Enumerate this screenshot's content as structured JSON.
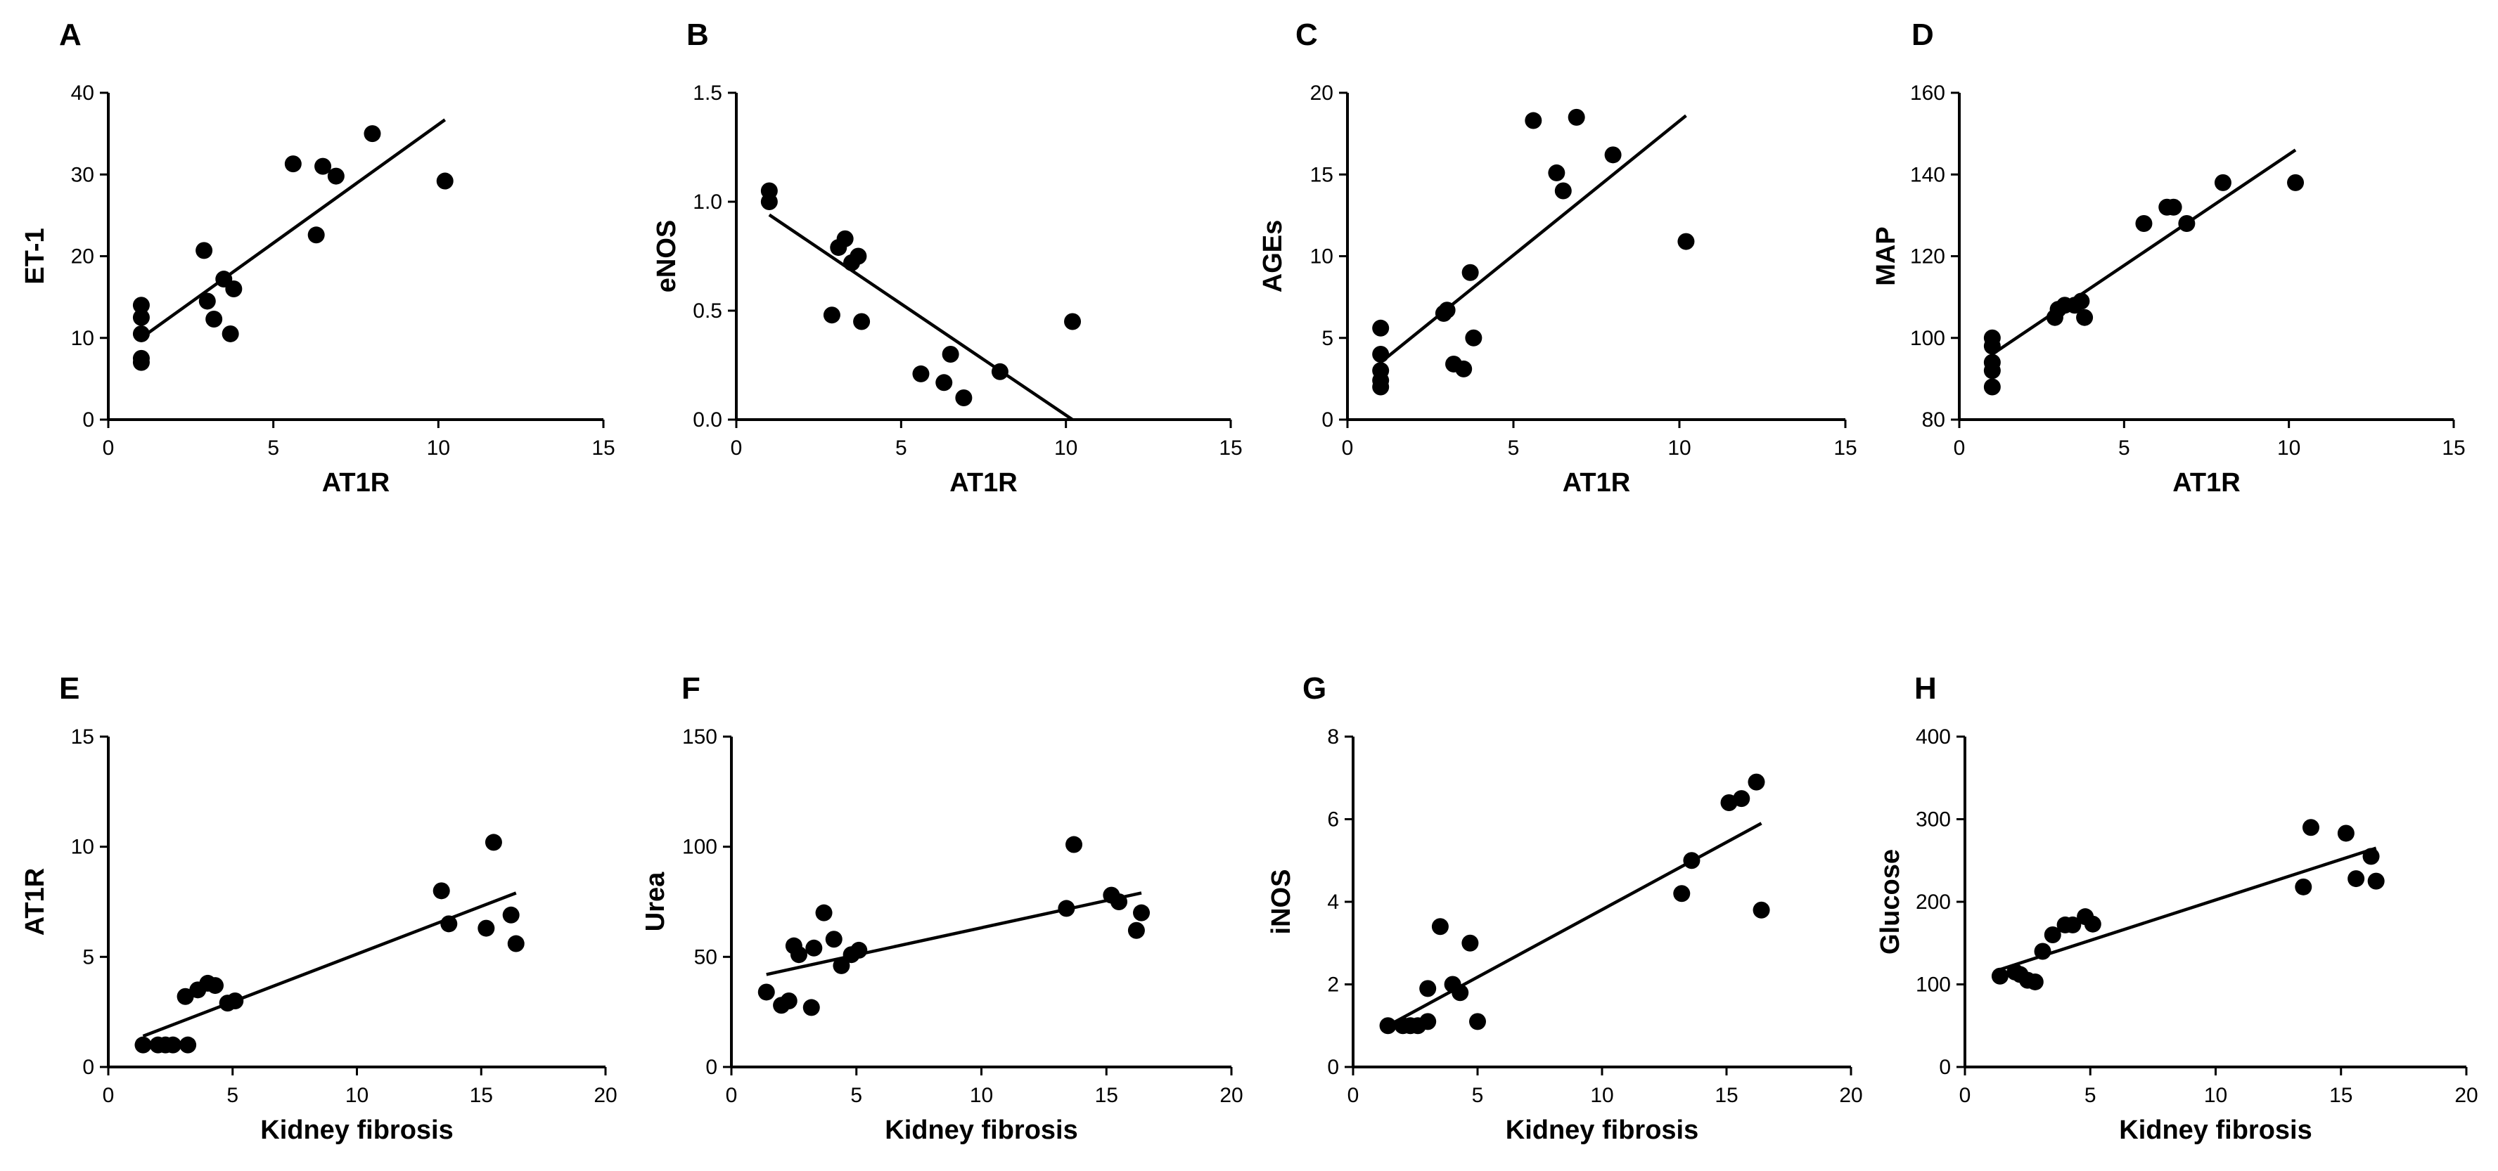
{
  "chart_data": [
    {
      "panel": "A",
      "type": "scatter",
      "xlabel": "AT1R",
      "ylabel": "ET-1",
      "xlim": [
        0,
        15
      ],
      "ylim": [
        0,
        40
      ],
      "xticks": [
        0,
        5,
        10,
        15
      ],
      "yticks": [
        0,
        10,
        20,
        30,
        40
      ],
      "points": [
        [
          1,
          14
        ],
        [
          1,
          12.5
        ],
        [
          1,
          10.5
        ],
        [
          1,
          7.5
        ],
        [
          1,
          7
        ],
        [
          2.9,
          20.7
        ],
        [
          3,
          14.5
        ],
        [
          3.2,
          12.3
        ],
        [
          3.5,
          17.2
        ],
        [
          3.7,
          10.5
        ],
        [
          3.8,
          16
        ],
        [
          5.6,
          31.3
        ],
        [
          6.3,
          22.6
        ],
        [
          6.5,
          31
        ],
        [
          6.9,
          29.8
        ],
        [
          8,
          35
        ],
        [
          10.2,
          29.2
        ]
      ],
      "fit": [
        [
          1,
          10
        ],
        [
          10.2,
          36.7
        ]
      ]
    },
    {
      "panel": "B",
      "type": "scatter",
      "xlabel": "AT1R",
      "ylabel": "eNOS",
      "xlim": [
        0,
        15
      ],
      "ylim": [
        0,
        1.5
      ],
      "xticks": [
        0,
        5,
        10,
        15
      ],
      "yticks": [
        "0.0",
        "0.5",
        "1.0",
        "1.5"
      ],
      "points": [
        [
          1,
          1.05
        ],
        [
          1,
          1
        ],
        [
          2.9,
          0.48
        ],
        [
          3.1,
          0.79
        ],
        [
          3.3,
          0.83
        ],
        [
          3.5,
          0.72
        ],
        [
          3.7,
          0.75
        ],
        [
          3.8,
          0.45
        ],
        [
          5.6,
          0.21
        ],
        [
          6.3,
          0.17
        ],
        [
          6.5,
          0.3
        ],
        [
          6.9,
          0.1
        ],
        [
          8,
          0.22
        ],
        [
          10.2,
          0.45
        ]
      ],
      "fit": [
        [
          1,
          0.94
        ],
        [
          10.2,
          0
        ]
      ]
    },
    {
      "panel": "C",
      "type": "scatter",
      "xlabel": "AT1R",
      "ylabel": "AGEs",
      "xlim": [
        0,
        15
      ],
      "ylim": [
        0,
        20
      ],
      "xticks": [
        0,
        5,
        10,
        15
      ],
      "yticks": [
        0,
        5,
        10,
        15,
        20
      ],
      "points": [
        [
          1,
          5.6
        ],
        [
          1,
          4
        ],
        [
          1,
          3
        ],
        [
          1,
          2.4
        ],
        [
          1,
          2
        ],
        [
          2.9,
          6.5
        ],
        [
          3,
          6.7
        ],
        [
          3.2,
          3.4
        ],
        [
          3.5,
          3.1
        ],
        [
          3.7,
          9
        ],
        [
          3.8,
          5
        ],
        [
          5.6,
          18.3
        ],
        [
          6.3,
          15.1
        ],
        [
          6.5,
          14
        ],
        [
          6.9,
          18.5
        ],
        [
          8,
          16.2
        ],
        [
          10.2,
          10.9
        ]
      ],
      "fit": [
        [
          1,
          3.5
        ],
        [
          10.2,
          18.6
        ]
      ]
    },
    {
      "panel": "D",
      "type": "scatter",
      "xlabel": "AT1R",
      "ylabel": "MAP",
      "xlim": [
        0,
        15
      ],
      "ylim": [
        80,
        160
      ],
      "xticks": [
        0,
        5,
        10,
        15
      ],
      "yticks": [
        80,
        100,
        120,
        140,
        160
      ],
      "points": [
        [
          1,
          100
        ],
        [
          1,
          98
        ],
        [
          1,
          94
        ],
        [
          1,
          92
        ],
        [
          1,
          88
        ],
        [
          2.9,
          105
        ],
        [
          3,
          107
        ],
        [
          3.2,
          108
        ],
        [
          3.5,
          108
        ],
        [
          3.7,
          109
        ],
        [
          3.8,
          105
        ],
        [
          5.6,
          128
        ],
        [
          6.3,
          132
        ],
        [
          6.5,
          132
        ],
        [
          6.9,
          128
        ],
        [
          8,
          138
        ],
        [
          10.2,
          138
        ]
      ],
      "fit": [
        [
          1,
          96
        ],
        [
          10.2,
          146
        ]
      ]
    },
    {
      "panel": "E",
      "type": "scatter",
      "xlabel": "Kidney fibrosis",
      "ylabel": "AT1R",
      "xlim": [
        0,
        20
      ],
      "ylim": [
        0,
        15
      ],
      "xticks": [
        0,
        5,
        10,
        15,
        20
      ],
      "yticks": [
        0,
        5,
        10,
        15
      ],
      "points": [
        [
          1.4,
          1
        ],
        [
          2,
          1
        ],
        [
          2.3,
          1
        ],
        [
          2.6,
          1
        ],
        [
          3.2,
          1
        ],
        [
          3.1,
          3.2
        ],
        [
          3.6,
          3.5
        ],
        [
          4,
          3.8
        ],
        [
          4.3,
          3.7
        ],
        [
          4.8,
          2.9
        ],
        [
          5.1,
          3
        ],
        [
          13.4,
          8
        ],
        [
          13.7,
          6.5
        ],
        [
          15.2,
          6.3
        ],
        [
          15.5,
          10.2
        ],
        [
          16.2,
          6.9
        ],
        [
          16.4,
          5.6
        ]
      ],
      "fit": [
        [
          1.4,
          1.4
        ],
        [
          16.4,
          7.9
        ]
      ]
    },
    {
      "panel": "F",
      "type": "scatter",
      "xlabel": "Kidney fibrosis",
      "ylabel": "Urea",
      "xlim": [
        0,
        20
      ],
      "ylim": [
        0,
        150
      ],
      "xticks": [
        0,
        5,
        10,
        15,
        20
      ],
      "yticks": [
        0,
        50,
        100,
        150
      ],
      "points": [
        [
          1.4,
          34
        ],
        [
          2,
          28
        ],
        [
          2.3,
          30
        ],
        [
          2.5,
          55
        ],
        [
          2.7,
          51
        ],
        [
          3.2,
          27
        ],
        [
          3.3,
          54
        ],
        [
          3.7,
          70
        ],
        [
          4.1,
          58
        ],
        [
          4.4,
          46
        ],
        [
          4.8,
          51
        ],
        [
          5.1,
          53
        ],
        [
          13.4,
          72
        ],
        [
          13.7,
          101
        ],
        [
          15.2,
          78
        ],
        [
          15.5,
          75
        ],
        [
          16.2,
          62
        ],
        [
          16.4,
          70
        ]
      ],
      "fit": [
        [
          1.4,
          42
        ],
        [
          16.4,
          79
        ]
      ]
    },
    {
      "panel": "G",
      "type": "scatter",
      "xlabel": "Kidney fibrosis",
      "ylabel": "iNOS",
      "xlim": [
        0,
        20
      ],
      "ylim": [
        0,
        8
      ],
      "xticks": [
        0,
        5,
        10,
        15,
        20
      ],
      "yticks": [
        0,
        2,
        4,
        6,
        8
      ],
      "points": [
        [
          1.4,
          1
        ],
        [
          2,
          1
        ],
        [
          2.3,
          1
        ],
        [
          2.6,
          1
        ],
        [
          3,
          1.1
        ],
        [
          3,
          1.9
        ],
        [
          3.5,
          3.4
        ],
        [
          4,
          2
        ],
        [
          4.3,
          1.8
        ],
        [
          4.7,
          3
        ],
        [
          5,
          1.1
        ],
        [
          13.2,
          4.2
        ],
        [
          13.6,
          5
        ],
        [
          15.1,
          6.4
        ],
        [
          15.6,
          6.5
        ],
        [
          16.2,
          6.9
        ],
        [
          16.4,
          3.8
        ]
      ],
      "fit": [
        [
          1.4,
          1
        ],
        [
          16.4,
          5.9
        ]
      ]
    },
    {
      "panel": "H",
      "type": "scatter",
      "xlabel": "Kidney fibrosis",
      "ylabel": "Glucose",
      "xlim": [
        0,
        20
      ],
      "ylim": [
        0,
        400
      ],
      "xticks": [
        0,
        5,
        10,
        15,
        20
      ],
      "yticks": [
        0,
        100,
        200,
        300,
        400
      ],
      "points": [
        [
          1.4,
          110
        ],
        [
          2,
          115
        ],
        [
          2.2,
          112
        ],
        [
          2.5,
          105
        ],
        [
          2.8,
          103
        ],
        [
          3.1,
          140
        ],
        [
          3.5,
          160
        ],
        [
          4,
          172
        ],
        [
          4.3,
          172
        ],
        [
          4.8,
          182
        ],
        [
          5.1,
          173
        ],
        [
          13.5,
          218
        ],
        [
          13.8,
          290
        ],
        [
          15.2,
          283
        ],
        [
          15.6,
          228
        ],
        [
          16.2,
          255
        ],
        [
          16.4,
          225
        ]
      ],
      "fit": [
        [
          1.4,
          118
        ],
        [
          16.4,
          265
        ]
      ]
    }
  ]
}
